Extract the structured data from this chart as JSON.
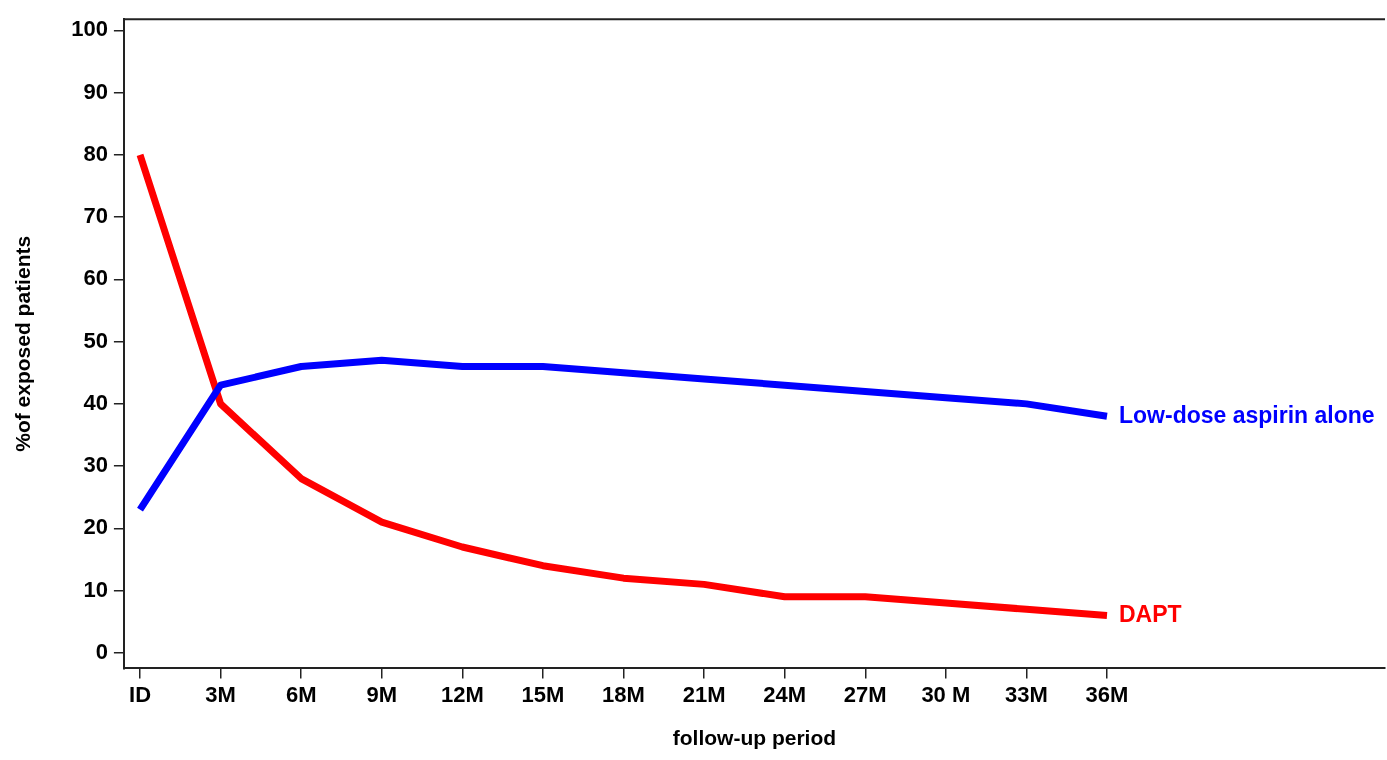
{
  "chart_data": {
    "type": "line",
    "xlabel": "follow-up period",
    "ylabel": "%of exposed patients",
    "categories": [
      "ID",
      "3M",
      "6M",
      "9M",
      "12M",
      "15M",
      "18M",
      "21M",
      "24M",
      "27M",
      "30 M",
      "33M",
      "36M"
    ],
    "series": [
      {
        "name": "Low-dose aspirin alone",
        "color": "#0000ff",
        "values": [
          23,
          43,
          46,
          47,
          46,
          46,
          45,
          44,
          43,
          42,
          41,
          40,
          38
        ]
      },
      {
        "name": "DAPT",
        "color": "#ff0000",
        "values": [
          80,
          40,
          28,
          21,
          17,
          14,
          12,
          11,
          9,
          9,
          8,
          7,
          6
        ]
      }
    ],
    "ylim": [
      -2.5,
      101.8
    ],
    "yticks": [
      0,
      10,
      20,
      30,
      40,
      50,
      60,
      70,
      80,
      90,
      100
    ],
    "grid": false,
    "legend": false,
    "marker": "none",
    "line_style": "solid"
  }
}
